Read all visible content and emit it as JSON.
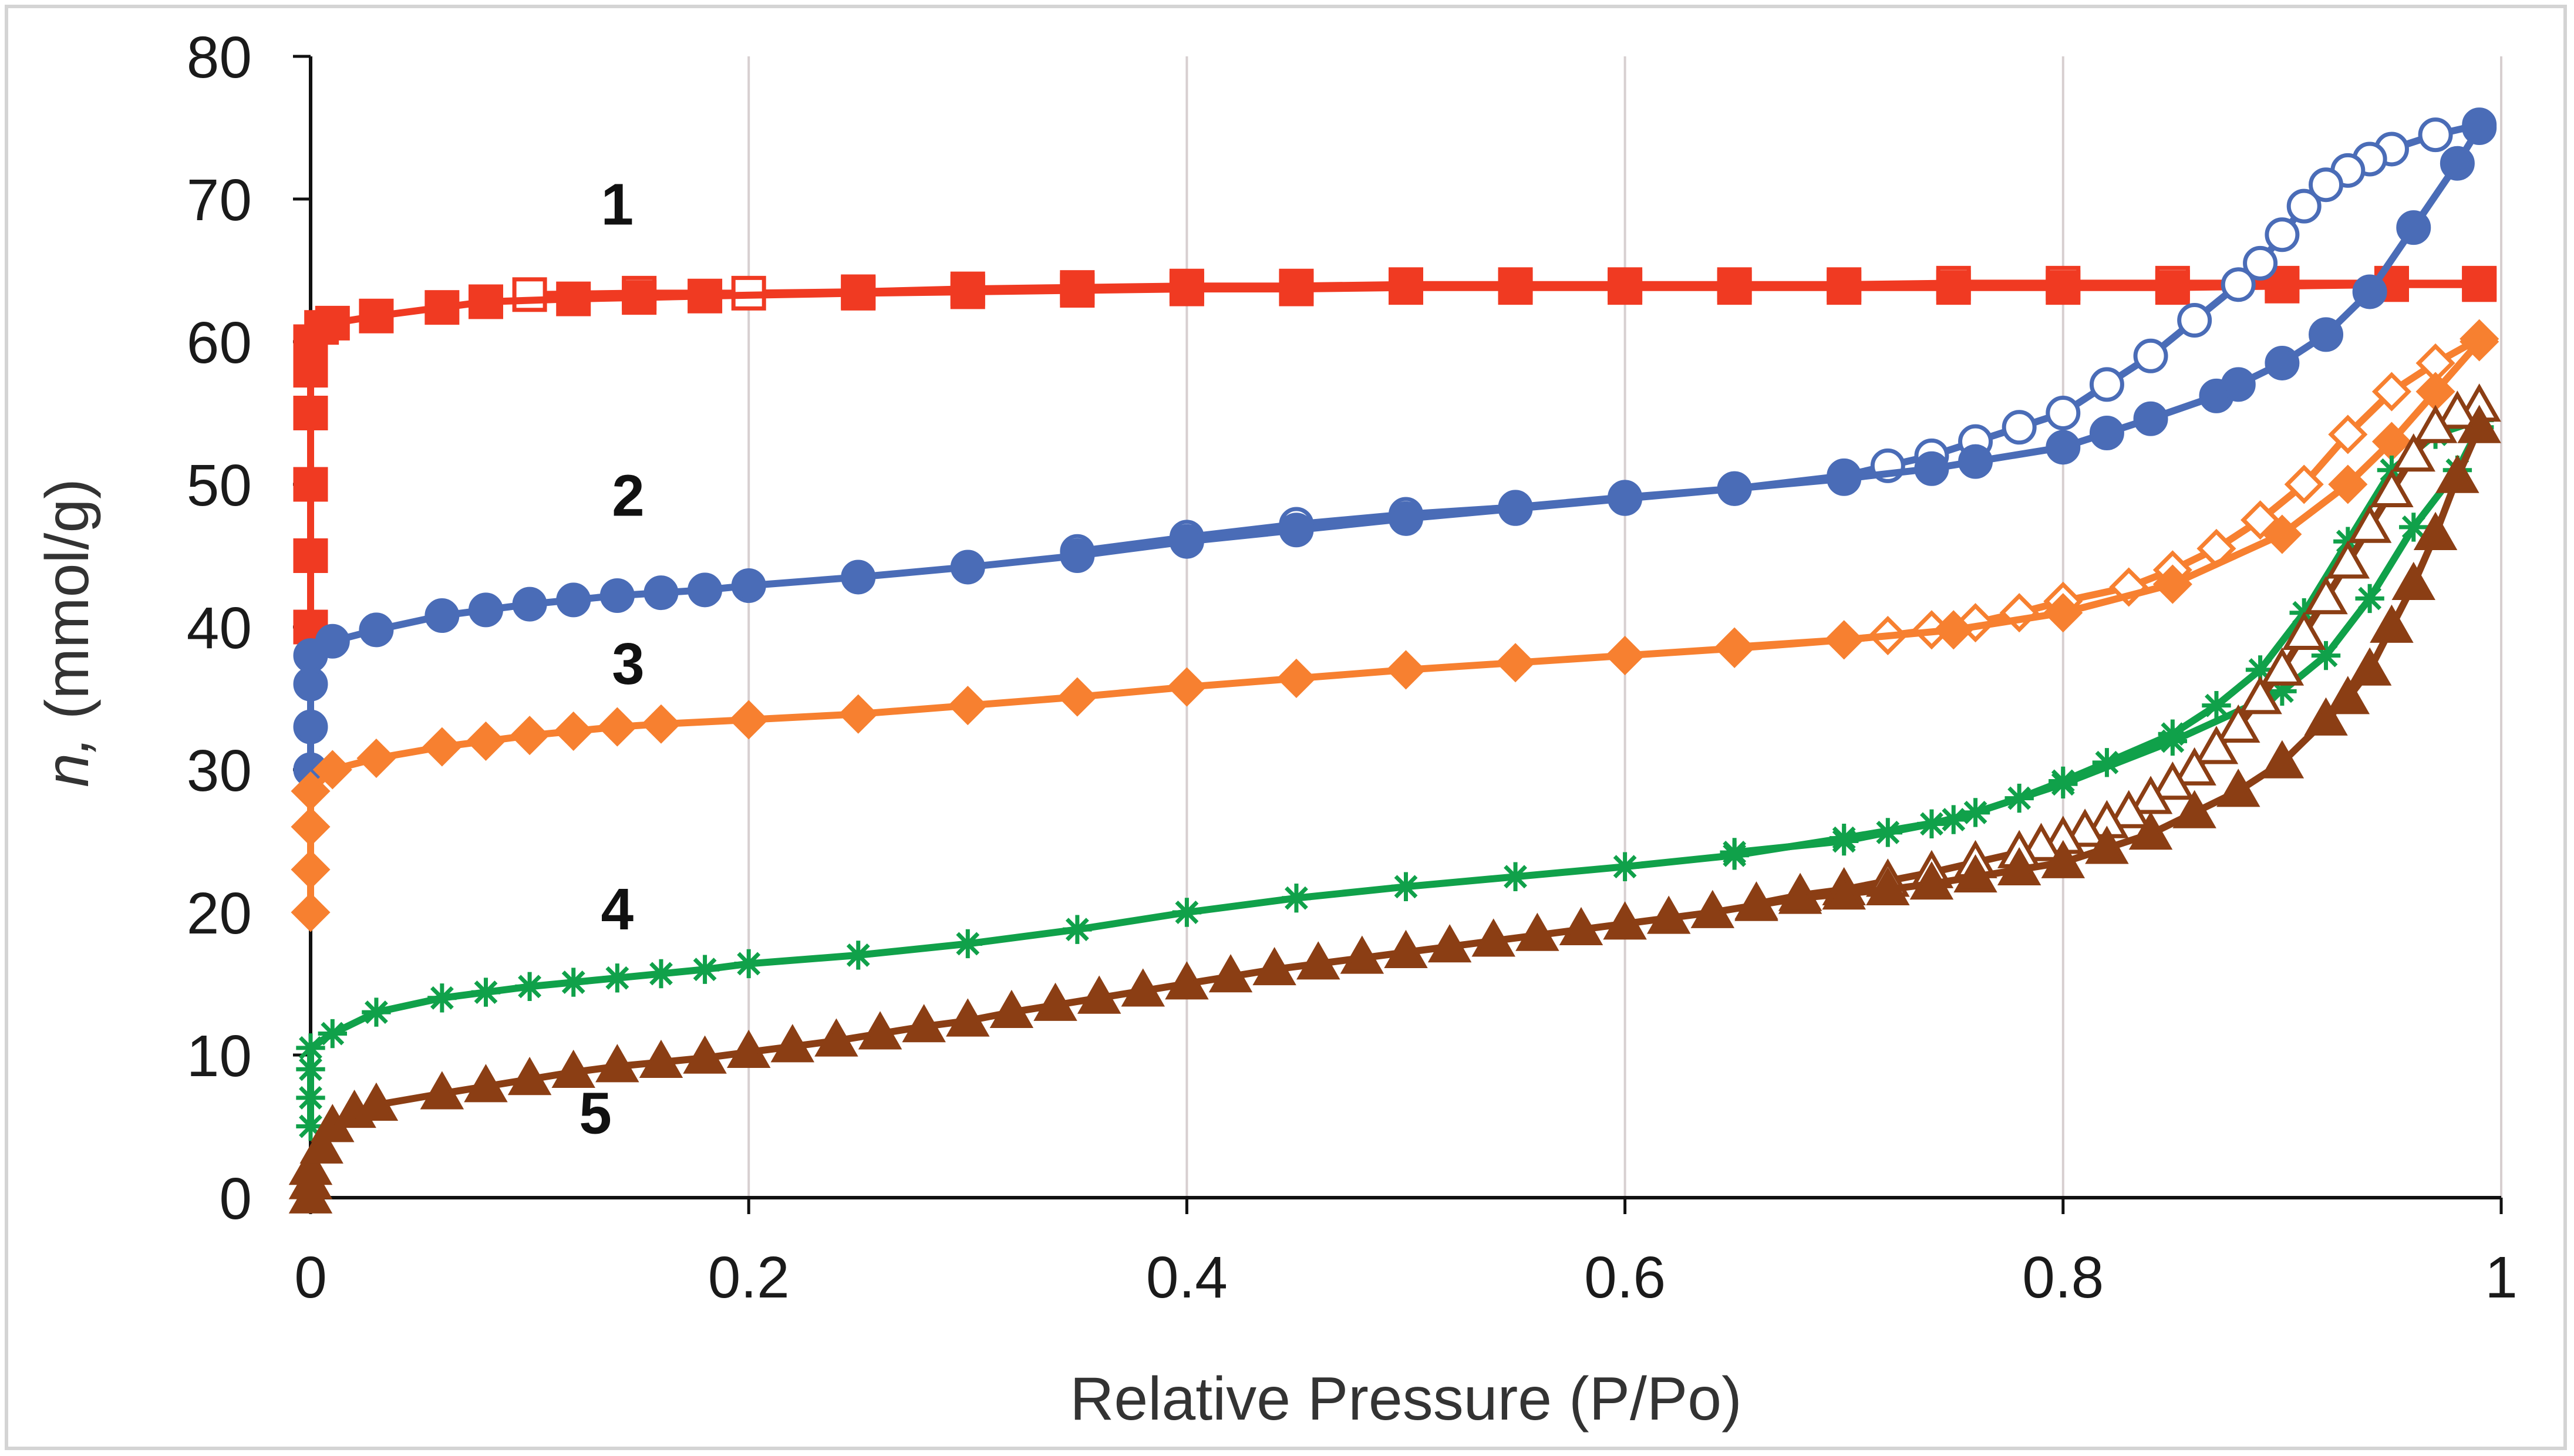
{
  "chart_data": {
    "type": "scatter",
    "title": "",
    "xlabel": "Relative Pressure (P/Po)",
    "ylabel_italic": "n,",
    "ylabel_rest": " (mmol/g)",
    "xlim": [
      0,
      1
    ],
    "ylim": [
      0,
      80
    ],
    "xticks": [
      0,
      0.2,
      0.4,
      0.6,
      0.8,
      1
    ],
    "xtick_labels": [
      "0",
      "0.2",
      "0.4",
      "0.6",
      "0.8",
      "1"
    ],
    "yticks": [
      0,
      10,
      20,
      30,
      40,
      50,
      60,
      70,
      80
    ],
    "ytick_labels": [
      "0",
      "10",
      "20",
      "30",
      "40",
      "50",
      "60",
      "70",
      "80"
    ],
    "grid": "vertical",
    "legend": "none",
    "series": [
      {
        "name": "1",
        "color": "#f03a22",
        "marker": "square",
        "label_pos": [
          0.14,
          68.2
        ],
        "adsorption": [
          [
            0,
            40
          ],
          [
            0,
            45
          ],
          [
            0,
            50
          ],
          [
            0,
            55
          ],
          [
            0,
            58
          ],
          [
            0,
            60
          ],
          [
            0.005,
            61
          ],
          [
            0.01,
            61.3
          ],
          [
            0.03,
            61.8
          ],
          [
            0.06,
            62.4
          ],
          [
            0.08,
            62.8
          ],
          [
            0.12,
            63
          ],
          [
            0.15,
            63.1
          ],
          [
            0.18,
            63.2
          ],
          [
            0.25,
            63.4
          ],
          [
            0.3,
            63.5
          ],
          [
            0.35,
            63.6
          ],
          [
            0.4,
            63.7
          ],
          [
            0.45,
            63.7
          ],
          [
            0.5,
            63.8
          ],
          [
            0.55,
            63.8
          ],
          [
            0.6,
            63.8
          ],
          [
            0.65,
            63.8
          ],
          [
            0.7,
            63.8
          ],
          [
            0.75,
            63.8
          ],
          [
            0.8,
            63.8
          ],
          [
            0.85,
            63.8
          ],
          [
            0.9,
            63.9
          ],
          [
            0.95,
            64
          ],
          [
            0.99,
            64
          ]
        ],
        "desorption": [
          [
            0.99,
            64.1
          ],
          [
            0.95,
            64.1
          ],
          [
            0.9,
            64.1
          ],
          [
            0.85,
            64.1
          ],
          [
            0.8,
            64.1
          ],
          [
            0.75,
            64.1
          ],
          [
            0.7,
            64
          ],
          [
            0.65,
            64
          ],
          [
            0.6,
            64
          ],
          [
            0.55,
            64
          ],
          [
            0.5,
            64
          ],
          [
            0.45,
            63.9
          ],
          [
            0.4,
            63.9
          ],
          [
            0.35,
            63.8
          ],
          [
            0.3,
            63.7
          ],
          [
            0.25,
            63.5
          ],
          [
            0.2,
            63.4
          ],
          [
            0.15,
            63.4
          ],
          [
            0.1,
            63.3
          ]
        ]
      },
      {
        "name": "2",
        "color": "#4a6cb7",
        "marker": "circle",
        "label_pos": [
          0.145,
          47.8
        ],
        "adsorption": [
          [
            0,
            30
          ],
          [
            0,
            33
          ],
          [
            0,
            36
          ],
          [
            0,
            38
          ],
          [
            0.01,
            39
          ],
          [
            0.03,
            39.8
          ],
          [
            0.06,
            40.8
          ],
          [
            0.08,
            41.2
          ],
          [
            0.1,
            41.6
          ],
          [
            0.12,
            41.9
          ],
          [
            0.14,
            42.2
          ],
          [
            0.16,
            42.4
          ],
          [
            0.18,
            42.6
          ],
          [
            0.2,
            42.9
          ],
          [
            0.25,
            43.5
          ],
          [
            0.3,
            44.2
          ],
          [
            0.35,
            45
          ],
          [
            0.4,
            46
          ],
          [
            0.45,
            46.8
          ],
          [
            0.5,
            47.6
          ],
          [
            0.55,
            48.3
          ],
          [
            0.6,
            49
          ],
          [
            0.65,
            49.7
          ],
          [
            0.7,
            50.4
          ],
          [
            0.74,
            51.1
          ],
          [
            0.76,
            51.6
          ],
          [
            0.8,
            52.6
          ],
          [
            0.82,
            53.6
          ],
          [
            0.84,
            54.6
          ],
          [
            0.87,
            56.2
          ],
          [
            0.88,
            57
          ],
          [
            0.9,
            58.5
          ],
          [
            0.92,
            60.5
          ],
          [
            0.94,
            63.5
          ],
          [
            0.96,
            68
          ],
          [
            0.98,
            72.5
          ],
          [
            0.99,
            75
          ]
        ],
        "desorption": [
          [
            0.99,
            75.2
          ],
          [
            0.97,
            74.5
          ],
          [
            0.95,
            73.5
          ],
          [
            0.94,
            72.8
          ],
          [
            0.93,
            72
          ],
          [
            0.92,
            71
          ],
          [
            0.91,
            69.5
          ],
          [
            0.9,
            67.5
          ],
          [
            0.89,
            65.5
          ],
          [
            0.88,
            64
          ],
          [
            0.86,
            61.5
          ],
          [
            0.84,
            59
          ],
          [
            0.82,
            57
          ],
          [
            0.8,
            55
          ],
          [
            0.78,
            54
          ],
          [
            0.76,
            53
          ],
          [
            0.74,
            52
          ],
          [
            0.72,
            51.3
          ],
          [
            0.7,
            50.6
          ],
          [
            0.65,
            49.7
          ],
          [
            0.6,
            49.1
          ],
          [
            0.55,
            48.4
          ],
          [
            0.5,
            47.9
          ],
          [
            0.45,
            47.2
          ],
          [
            0.4,
            46.3
          ],
          [
            0.35,
            45.3
          ]
        ]
      },
      {
        "name": "3",
        "color": "#f78030",
        "marker": "diamond",
        "label_pos": [
          0.145,
          36
        ],
        "adsorption": [
          [
            0,
            20
          ],
          [
            0,
            23
          ],
          [
            0,
            26
          ],
          [
            0,
            28.5
          ],
          [
            0.01,
            30
          ],
          [
            0.03,
            30.8
          ],
          [
            0.06,
            31.6
          ],
          [
            0.08,
            32
          ],
          [
            0.1,
            32.4
          ],
          [
            0.12,
            32.7
          ],
          [
            0.14,
            33
          ],
          [
            0.16,
            33.2
          ],
          [
            0.2,
            33.5
          ],
          [
            0.25,
            33.9
          ],
          [
            0.3,
            34.5
          ],
          [
            0.35,
            35.1
          ],
          [
            0.4,
            35.8
          ],
          [
            0.45,
            36.4
          ],
          [
            0.5,
            37
          ],
          [
            0.55,
            37.5
          ],
          [
            0.6,
            38
          ],
          [
            0.65,
            38.5
          ],
          [
            0.7,
            39.1
          ],
          [
            0.75,
            39.8
          ],
          [
            0.8,
            41
          ],
          [
            0.85,
            43
          ],
          [
            0.9,
            46.5
          ],
          [
            0.93,
            50
          ],
          [
            0.95,
            53
          ],
          [
            0.97,
            56.5
          ],
          [
            0.99,
            60
          ]
        ],
        "desorption": [
          [
            0.99,
            60.2
          ],
          [
            0.97,
            58.5
          ],
          [
            0.95,
            56.5
          ],
          [
            0.93,
            53.5
          ],
          [
            0.91,
            50
          ],
          [
            0.89,
            47.5
          ],
          [
            0.87,
            45.5
          ],
          [
            0.85,
            44
          ],
          [
            0.83,
            42.8
          ],
          [
            0.8,
            41.8
          ],
          [
            0.78,
            41
          ],
          [
            0.76,
            40.3
          ],
          [
            0.74,
            39.8
          ],
          [
            0.72,
            39.4
          ],
          [
            0.7,
            39.1
          ],
          [
            0.65,
            38.6
          ]
        ]
      },
      {
        "name": "4",
        "color": "#10a14a",
        "marker": "asterisk",
        "label_pos": [
          0.14,
          18.8
        ],
        "adsorption": [
          [
            0,
            5
          ],
          [
            0,
            7
          ],
          [
            0,
            9
          ],
          [
            0,
            10.5
          ],
          [
            0.01,
            11.5
          ],
          [
            0.03,
            13
          ],
          [
            0.06,
            14
          ],
          [
            0.08,
            14.4
          ],
          [
            0.1,
            14.8
          ],
          [
            0.12,
            15.1
          ],
          [
            0.14,
            15.4
          ],
          [
            0.16,
            15.7
          ],
          [
            0.18,
            16
          ],
          [
            0.2,
            16.4
          ],
          [
            0.25,
            17
          ],
          [
            0.3,
            17.8
          ],
          [
            0.35,
            18.8
          ],
          [
            0.4,
            20
          ],
          [
            0.45,
            21
          ],
          [
            0.5,
            21.8
          ],
          [
            0.55,
            22.5
          ],
          [
            0.6,
            23.2
          ],
          [
            0.65,
            24
          ],
          [
            0.7,
            25.2
          ],
          [
            0.75,
            26.5
          ],
          [
            0.8,
            29
          ],
          [
            0.85,
            32
          ],
          [
            0.9,
            35.5
          ],
          [
            0.92,
            38
          ],
          [
            0.94,
            42
          ],
          [
            0.96,
            47
          ],
          [
            0.98,
            51
          ],
          [
            0.99,
            54
          ]
        ],
        "desorption": [
          [
            0.99,
            54.5
          ],
          [
            0.97,
            53.5
          ],
          [
            0.95,
            51
          ],
          [
            0.93,
            46
          ],
          [
            0.91,
            41
          ],
          [
            0.89,
            37
          ],
          [
            0.87,
            34.5
          ],
          [
            0.85,
            32.5
          ],
          [
            0.82,
            30.5
          ],
          [
            0.8,
            29.2
          ],
          [
            0.78,
            28
          ],
          [
            0.76,
            27
          ],
          [
            0.74,
            26.2
          ],
          [
            0.72,
            25.6
          ],
          [
            0.7,
            25
          ],
          [
            0.65,
            24.2
          ]
        ]
      },
      {
        "name": "5",
        "color": "#8b3e14",
        "marker": "triangle",
        "label_pos": [
          0.13,
          4.5
        ],
        "adsorption": [
          [
            0,
            0
          ],
          [
            0,
            1
          ],
          [
            0,
            2
          ],
          [
            0.005,
            3.5
          ],
          [
            0.01,
            5
          ],
          [
            0.02,
            6
          ],
          [
            0.03,
            6.5
          ],
          [
            0.06,
            7.3
          ],
          [
            0.08,
            7.8
          ],
          [
            0.1,
            8.3
          ],
          [
            0.12,
            8.8
          ],
          [
            0.14,
            9.2
          ],
          [
            0.16,
            9.5
          ],
          [
            0.18,
            9.8
          ],
          [
            0.2,
            10.2
          ],
          [
            0.22,
            10.6
          ],
          [
            0.24,
            11
          ],
          [
            0.26,
            11.5
          ],
          [
            0.28,
            12
          ],
          [
            0.3,
            12.4
          ],
          [
            0.32,
            13
          ],
          [
            0.34,
            13.5
          ],
          [
            0.36,
            14
          ],
          [
            0.38,
            14.5
          ],
          [
            0.4,
            15
          ],
          [
            0.42,
            15.5
          ],
          [
            0.44,
            16
          ],
          [
            0.46,
            16.4
          ],
          [
            0.48,
            16.8
          ],
          [
            0.5,
            17.2
          ],
          [
            0.52,
            17.6
          ],
          [
            0.54,
            18
          ],
          [
            0.56,
            18.4
          ],
          [
            0.58,
            18.8
          ],
          [
            0.6,
            19.2
          ],
          [
            0.62,
            19.6
          ],
          [
            0.64,
            20
          ],
          [
            0.66,
            20.5
          ],
          [
            0.68,
            21
          ],
          [
            0.7,
            21.3
          ],
          [
            0.72,
            21.6
          ],
          [
            0.74,
            22
          ],
          [
            0.76,
            22.5
          ],
          [
            0.78,
            23
          ],
          [
            0.8,
            23.5
          ],
          [
            0.82,
            24.5
          ],
          [
            0.84,
            25.5
          ],
          [
            0.86,
            27
          ],
          [
            0.88,
            28.5
          ],
          [
            0.9,
            30.5
          ],
          [
            0.92,
            33.5
          ],
          [
            0.93,
            35
          ],
          [
            0.94,
            37
          ],
          [
            0.95,
            40
          ],
          [
            0.96,
            43
          ],
          [
            0.97,
            46.5
          ],
          [
            0.98,
            50.5
          ],
          [
            0.99,
            54
          ]
        ],
        "desorption": [
          [
            0.99,
            55.5
          ],
          [
            0.98,
            55
          ],
          [
            0.97,
            54
          ],
          [
            0.96,
            52
          ],
          [
            0.95,
            49.5
          ],
          [
            0.94,
            47
          ],
          [
            0.93,
            44.5
          ],
          [
            0.92,
            42
          ],
          [
            0.91,
            39.5
          ],
          [
            0.9,
            37
          ],
          [
            0.89,
            35
          ],
          [
            0.88,
            33
          ],
          [
            0.87,
            31.5
          ],
          [
            0.86,
            30
          ],
          [
            0.85,
            29
          ],
          [
            0.84,
            28
          ],
          [
            0.83,
            27
          ],
          [
            0.82,
            26.3
          ],
          [
            0.81,
            25.7
          ],
          [
            0.8,
            25.2
          ],
          [
            0.79,
            24.7
          ],
          [
            0.78,
            24.2
          ],
          [
            0.76,
            23.5
          ],
          [
            0.74,
            22.8
          ],
          [
            0.72,
            22.2
          ],
          [
            0.7,
            21.6
          ],
          [
            0.68,
            21.2
          ],
          [
            0.66,
            20.6
          ]
        ]
      }
    ]
  }
}
